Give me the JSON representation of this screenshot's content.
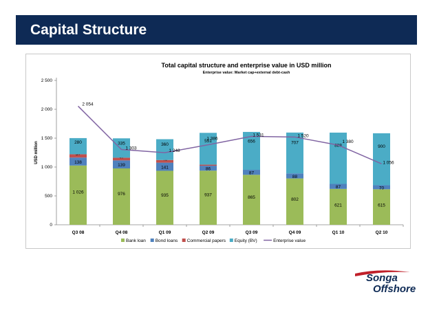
{
  "header": {
    "title": "Capital Structure"
  },
  "logo": {
    "line1": "Songa",
    "line2": "Offshore",
    "accent_color": "#c0202a",
    "text_color": "#0e2a55"
  },
  "chart_data": {
    "type": "bar",
    "stacked": true,
    "title": "Total capital structure and enterprise value in USD million",
    "subtitle": "Enterprise value: Market cap+external debt-cash",
    "ylabel": "USD million",
    "xlabel": "",
    "ylim": [
      0,
      2500
    ],
    "yticks": [
      0,
      500,
      1000,
      1500,
      2000,
      2500
    ],
    "ytick_labels": [
      "0",
      "500",
      "1 000",
      "1 500",
      "2 000",
      "2 500"
    ],
    "grid": false,
    "legend_position": "bottom",
    "categories": [
      "Q3 08",
      "Q4 08",
      "Q1 09",
      "Q2 09",
      "Q3 09",
      "Q4 09",
      "Q1 10",
      "Q2 10"
    ],
    "series": [
      {
        "name": "Bank loan",
        "color": "#9bbb59",
        "values": [
          1026,
          976,
          935,
          937,
          865,
          802,
          621,
          615
        ],
        "labels": [
          "1 026",
          "976",
          "935",
          "937",
          "865",
          "802",
          "621",
          "615"
        ]
      },
      {
        "name": "Bond loans",
        "color": "#4f81bd",
        "values": [
          138,
          139,
          141,
          86,
          87,
          88,
          87,
          70
        ],
        "labels": [
          "138",
          "139",
          "141",
          "86",
          "87",
          "88",
          "87",
          "70"
        ]
      },
      {
        "name": "Commercial papers",
        "color": "#c0504d",
        "values": [
          57,
          47,
          46,
          18,
          0,
          0,
          0,
          0
        ],
        "labels": [
          "57",
          "47",
          "46",
          "18",
          "",
          "",
          "",
          ""
        ]
      },
      {
        "name": "Equity (BV)",
        "color": "#4bacc6",
        "values": [
          280,
          335,
          360,
          551,
          656,
          707,
          888,
          900
        ],
        "labels": [
          "280",
          "335",
          "360",
          "551",
          "656",
          "707",
          "888",
          "900"
        ]
      }
    ],
    "line": {
      "name": "Enterprise value",
      "color": "#8064a2",
      "values": [
        2054,
        1303,
        1248,
        1386,
        1531,
        1520,
        1380,
        1056
      ],
      "labels": [
        "2 054",
        "1 303",
        "1 248",
        "1 386",
        "1 531",
        "1 520",
        "1 380",
        "1 056"
      ]
    }
  }
}
